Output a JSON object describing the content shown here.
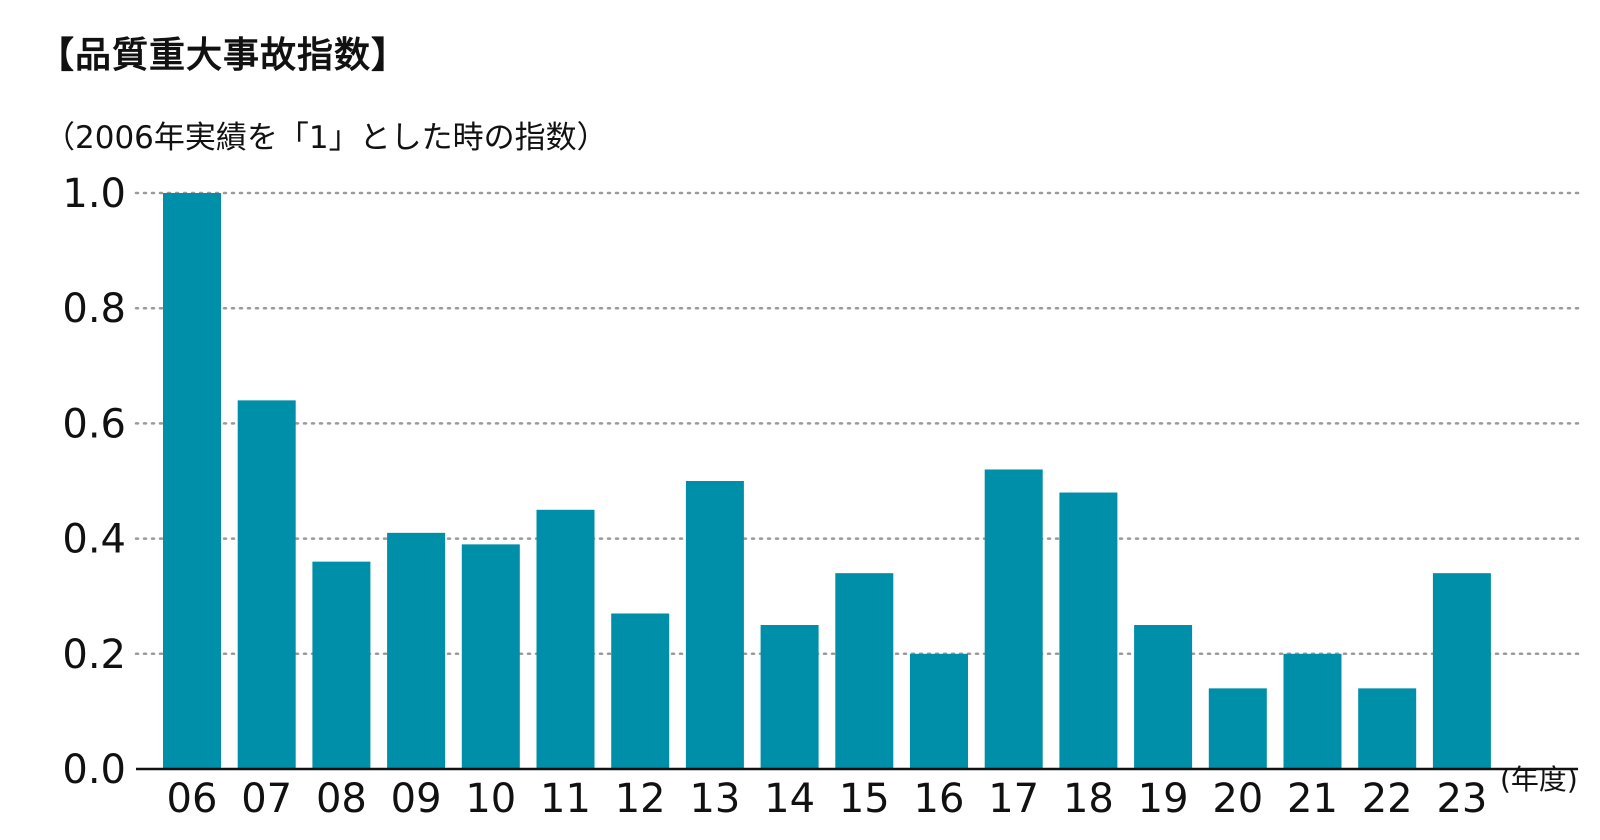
{
  "chart_data": {
    "type": "bar",
    "title": "【品質重大事故指数】",
    "subtitle": "（2006年実績を「1」とした時の指数）",
    "categories": [
      "06",
      "07",
      "08",
      "09",
      "10",
      "11",
      "12",
      "13",
      "14",
      "15",
      "16",
      "17",
      "18",
      "19",
      "20",
      "21",
      "22",
      "23"
    ],
    "values": [
      1.0,
      0.64,
      0.36,
      0.41,
      0.39,
      0.45,
      0.27,
      0.5,
      0.25,
      0.34,
      0.2,
      0.52,
      0.48,
      0.25,
      0.14,
      0.2,
      0.14,
      0.34
    ],
    "xlabel": "",
    "ylabel": "",
    "x_unit": "(年度)",
    "ylim": [
      0,
      1.0
    ],
    "yticks": [
      "0.0",
      "0.2",
      "0.4",
      "0.6",
      "0.8",
      "1.0"
    ],
    "grid": true,
    "bar_color": "#008fa8",
    "grid_color": "#9a9a9a",
    "axis_color": "#111111"
  }
}
